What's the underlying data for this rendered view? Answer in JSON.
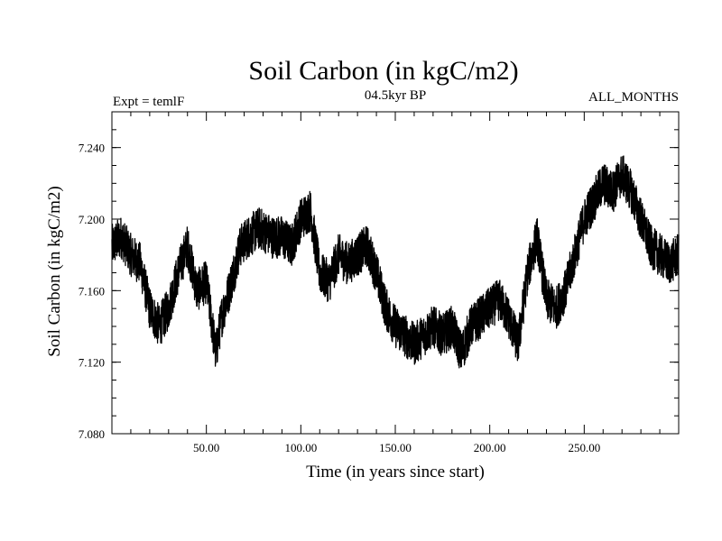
{
  "chart_data": {
    "type": "line",
    "title": "Soil Carbon (in kgC/m2)",
    "subtitle_left": "Expt = temlF",
    "subtitle_center": "04.5kyr BP",
    "subtitle_right": "ALL_MONTHS",
    "xlabel": "Time (in years since start)",
    "ylabel": "Soil Carbon (in kgC/m2)",
    "xlim": [
      0,
      300
    ],
    "ylim": [
      7.08,
      7.26
    ],
    "x_ticks": [
      50,
      100,
      150,
      200,
      250
    ],
    "x_tick_labels": [
      "50.00",
      "100.00",
      "150.00",
      "200.00",
      "250.00"
    ],
    "y_ticks": [
      7.08,
      7.12,
      7.16,
      7.2,
      7.24
    ],
    "y_tick_labels": [
      "7.080",
      "7.120",
      "7.160",
      "7.200",
      "7.240"
    ],
    "grid": false,
    "series": [
      {
        "name": "Soil Carbon",
        "color": "#000000",
        "trend": {
          "x": [
            0,
            5,
            10,
            15,
            20,
            25,
            30,
            35,
            40,
            45,
            50,
            55,
            58,
            62,
            68,
            72,
            78,
            85,
            90,
            95,
            100,
            105,
            110,
            115,
            120,
            125,
            130,
            135,
            140,
            145,
            150,
            155,
            160,
            165,
            170,
            175,
            180,
            185,
            190,
            195,
            200,
            205,
            210,
            215,
            220,
            225,
            230,
            235,
            240,
            245,
            250,
            255,
            260,
            265,
            270,
            275,
            280,
            285,
            290,
            295,
            300
          ],
          "y": [
            7.185,
            7.19,
            7.18,
            7.175,
            7.15,
            7.14,
            7.15,
            7.17,
            7.185,
            7.16,
            7.165,
            7.125,
            7.145,
            7.16,
            7.185,
            7.19,
            7.195,
            7.19,
            7.19,
            7.185,
            7.2,
            7.205,
            7.17,
            7.165,
            7.18,
            7.175,
            7.18,
            7.185,
            7.17,
            7.15,
            7.14,
            7.135,
            7.13,
            7.135,
            7.14,
            7.135,
            7.14,
            7.125,
            7.14,
            7.145,
            7.15,
            7.155,
            7.145,
            7.13,
            7.17,
            7.19,
            7.155,
            7.15,
            7.16,
            7.18,
            7.2,
            7.21,
            7.22,
            7.215,
            7.225,
            7.215,
            7.2,
            7.185,
            7.18,
            7.175,
            7.18
          ]
        },
        "noise_amplitude": 0.012,
        "samples_per_year": 12
      }
    ]
  }
}
